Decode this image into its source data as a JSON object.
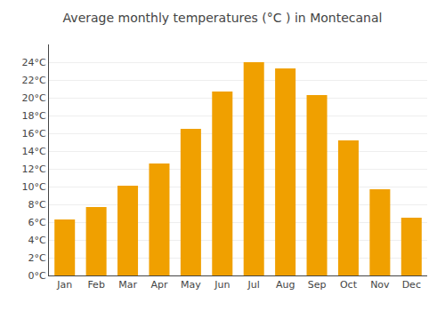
{
  "chart_data": {
    "type": "bar",
    "title": "Average monthly temperatures (°C ) in Montecanal",
    "categories": [
      "Jan",
      "Feb",
      "Mar",
      "Apr",
      "May",
      "Jun",
      "Jul",
      "Aug",
      "Sep",
      "Oct",
      "Nov",
      "Dec"
    ],
    "values": [
      6.3,
      7.7,
      10.1,
      12.6,
      16.5,
      20.7,
      24.0,
      23.3,
      20.3,
      15.2,
      9.7,
      6.5
    ],
    "color": "#F0A000",
    "ylim": [
      0,
      26
    ],
    "yticks": [
      {
        "value": 0,
        "label": "0°C"
      },
      {
        "value": 2,
        "label": "2°C"
      },
      {
        "value": 4,
        "label": "4°C"
      },
      {
        "value": 6,
        "label": "6°C"
      },
      {
        "value": 8,
        "label": "8°C"
      },
      {
        "value": 10,
        "label": "10°C"
      },
      {
        "value": 12,
        "label": "12°C"
      },
      {
        "value": 14,
        "label": "14°C"
      },
      {
        "value": 16,
        "label": "16°C"
      },
      {
        "value": 18,
        "label": "18°C"
      },
      {
        "value": 20,
        "label": "20°C"
      },
      {
        "value": 22,
        "label": "22°C"
      },
      {
        "value": 24,
        "label": "24°C"
      }
    ],
    "grid": true
  }
}
